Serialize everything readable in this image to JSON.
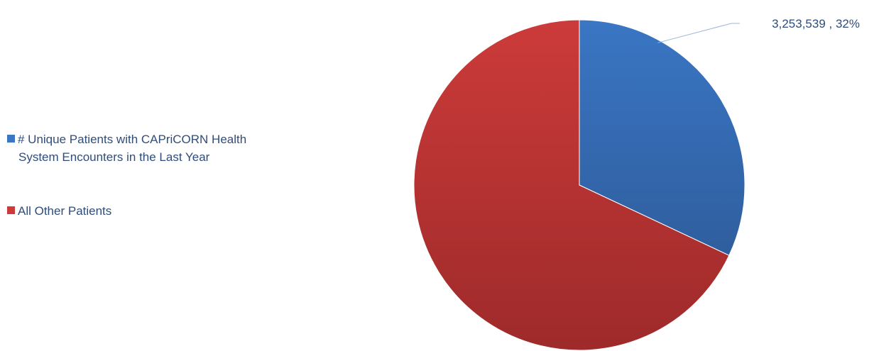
{
  "chart_data": {
    "type": "pie",
    "title": "",
    "legend_position": "left",
    "slices": [
      {
        "name": "# Unique Patients with CAPriCORN Health System Encounters in the Last Year",
        "legend_lines": [
          "# Unique Patients with CAPriCORN Health",
          "System Encounters in the Last Year"
        ],
        "value": 3253539,
        "percent": 32,
        "data_label": "3,253,539 , 32%",
        "color": "#3a76c4",
        "color_dark": "#2f5e9e"
      },
      {
        "name": "All Other Patients",
        "legend_lines": [
          "All Other Patients"
        ],
        "percent": 68,
        "data_label": "",
        "color": "#cc3b3a",
        "color_dark": "#9e2a2a"
      }
    ]
  }
}
